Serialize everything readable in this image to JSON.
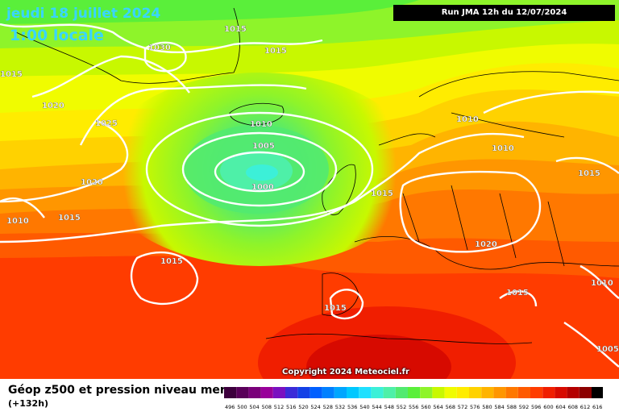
{
  "header": {
    "date": "jeudi 18 juillet 2024",
    "time": "1:00 locale",
    "run": "Run JMA 12h du 12/07/2024"
  },
  "copyright": "Copyright 2024 Meteociel.fr",
  "footer": {
    "title": "Géop z500 et pression niveau mer",
    "subtitle": "(+132h)"
  },
  "legend": {
    "values": [
      "496",
      "500",
      "504",
      "508",
      "512",
      "516",
      "520",
      "524",
      "528",
      "532",
      "536",
      "540",
      "544",
      "548",
      "552",
      "556",
      "560",
      "564",
      "568",
      "572",
      "576",
      "580",
      "584",
      "588",
      "592",
      "596",
      "600",
      "604",
      "608",
      "612",
      "616"
    ],
    "colors": [
      "#3d003d",
      "#5a005a",
      "#7a007a",
      "#99009a",
      "#7a10c0",
      "#3b2bd8",
      "#1440e6",
      "#005fff",
      "#0080ff",
      "#00a6ff",
      "#00c8ff",
      "#1fe0ff",
      "#3cf0d8",
      "#4ef0a8",
      "#52ea70",
      "#5aef3a",
      "#8ef42a",
      "#c8f800",
      "#f0fc00",
      "#ffec00",
      "#ffd200",
      "#ffb400",
      "#ff9600",
      "#ff7800",
      "#ff5a00",
      "#ff3c00",
      "#f01e00",
      "#d70a00",
      "#b40000",
      "#8c0000",
      "#000000"
    ]
  },
  "isobars": [
    {
      "label": "1015"
    },
    {
      "label": "1015"
    },
    {
      "label": "1030"
    },
    {
      "label": "1015"
    },
    {
      "label": "1020"
    },
    {
      "label": "1025"
    },
    {
      "label": "1010"
    },
    {
      "label": "1005"
    },
    {
      "label": "1000"
    },
    {
      "label": "1020"
    },
    {
      "label": "1015"
    },
    {
      "label": "1010"
    },
    {
      "label": "1015"
    },
    {
      "label": "1015"
    },
    {
      "label": "1010"
    },
    {
      "label": "1010"
    },
    {
      "label": "1015"
    },
    {
      "label": "1020"
    },
    {
      "label": "1015"
    },
    {
      "label": "1015"
    },
    {
      "label": "1010"
    },
    {
      "label": "1005"
    }
  ]
}
